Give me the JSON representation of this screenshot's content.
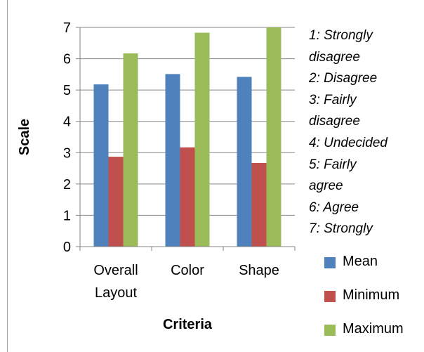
{
  "chart_data": {
    "type": "bar",
    "title": "",
    "xlabel": "Criteria",
    "ylabel": "Scale",
    "ylim": [
      0,
      7
    ],
    "yticks": [
      "0",
      "1",
      "2",
      "3",
      "4",
      "5",
      "6",
      "7"
    ],
    "categories": [
      [
        "Overall",
        "Layout"
      ],
      [
        "Color"
      ],
      [
        "Shape"
      ]
    ],
    "series": [
      {
        "name": "Mean",
        "color": "#4f81bd",
        "values": [
          5.18,
          5.51,
          5.42
        ]
      },
      {
        "name": "Minimum",
        "color": "#c0504d",
        "values": [
          2.87,
          3.17,
          2.67
        ]
      },
      {
        "name": "Maximum",
        "color": "#9bbb59",
        "values": [
          6.17,
          6.83,
          7.0
        ]
      }
    ],
    "grid": true,
    "legend_position": "bottom-right"
  },
  "notes": [
    "1: Strongly",
    "disagree",
    "2: Disagree",
    "3: Fairly",
    "disagree",
    "4: Undecided",
    "5: Fairly",
    "agree",
    "6: Agree",
    "7: Strongly"
  ]
}
